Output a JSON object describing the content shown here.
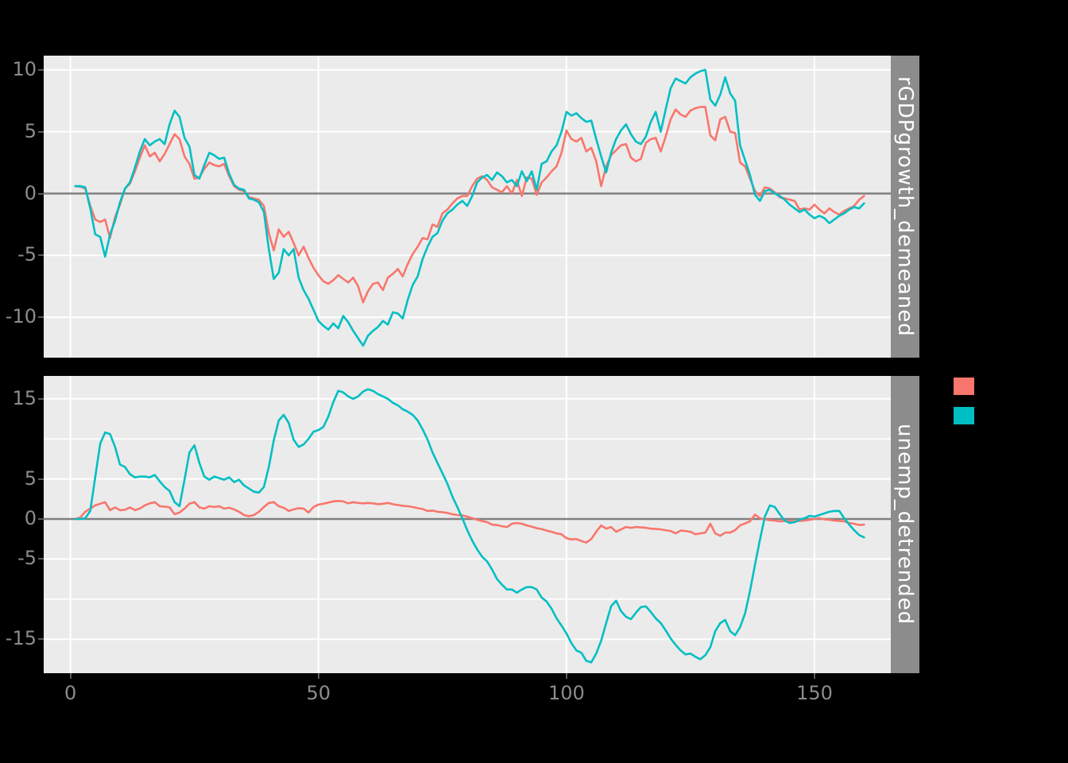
{
  "figure": {
    "background_color": "#000000",
    "panel_background": "#EBEBEB",
    "gridline_color": "#FFFFFF",
    "zero_line_color": "#808080",
    "axis_text_color": "#8C8C8C",
    "strip_background": "#8C8C8C",
    "strip_text_color": "#FFFFFF"
  },
  "x_axis": {
    "ticks": [
      0,
      50,
      100,
      150
    ],
    "tick_labels": [
      "0",
      "50",
      "100",
      "150"
    ]
  },
  "legend": {
    "position": "right",
    "items": [
      {
        "swatch_color": "#F8766D",
        "label": ""
      },
      {
        "swatch_color": "#00BFC4",
        "label": ""
      }
    ]
  },
  "chart_data": [
    {
      "type": "line",
      "strip_label": "rGDPgrowth_demeaned",
      "x_start": 1,
      "x_step": 1,
      "xlim": [
        -5,
        165
      ],
      "ylim": [
        -13,
        11
      ],
      "zero_line": 0,
      "grid": "on",
      "y_gridlines": [
        {
          "value": 10,
          "label": "10"
        },
        {
          "value": 5,
          "label": "5"
        },
        {
          "value": 0,
          "label": "0"
        },
        {
          "value": -5,
          "label": "-5"
        },
        {
          "value": -10,
          "label": "-10"
        }
      ],
      "series": [
        {
          "name": "series-salmon",
          "color": "#F8766D",
          "values": [
            0.6,
            0.55,
            0.4,
            -1.0,
            -2.1,
            -2.3,
            -2.1,
            -3.6,
            -1.9,
            -0.9,
            0.4,
            0.8,
            1.8,
            2.9,
            3.9,
            3.0,
            3.3,
            2.6,
            3.2,
            4.0,
            4.8,
            4.4,
            3.0,
            2.4,
            1.2,
            1.3,
            2.0,
            2.5,
            2.3,
            2.2,
            2.4,
            1.4,
            0.6,
            0.3,
            0.2,
            -0.3,
            -0.4,
            -0.5,
            -1.0,
            -3.2,
            -4.6,
            -2.9,
            -3.5,
            -3.1,
            -4.0,
            -5.0,
            -4.3,
            -5.2,
            -6.0,
            -6.6,
            -7.1,
            -7.3,
            -7.0,
            -6.6,
            -6.9,
            -7.2,
            -6.8,
            -7.5,
            -8.8,
            -7.9,
            -7.3,
            -7.2,
            -7.8,
            -6.8,
            -6.5,
            -6.1,
            -6.7,
            -5.7,
            -4.9,
            -4.3,
            -3.6,
            -3.7,
            -2.5,
            -2.7,
            -1.6,
            -1.3,
            -0.8,
            -0.4,
            -0.2,
            -0.2,
            0.6,
            1.2,
            1.4,
            1.1,
            0.5,
            0.3,
            0.1,
            0.6,
            0.0,
            1.1,
            -0.2,
            1.3,
            1.2,
            -0.1,
            0.9,
            1.3,
            1.8,
            2.2,
            3.3,
            5.1,
            4.4,
            4.2,
            4.5,
            3.4,
            3.7,
            2.6,
            0.6,
            2.2,
            3.1,
            3.5,
            3.9,
            4.0,
            2.9,
            2.6,
            2.8,
            4.1,
            4.4,
            4.5,
            3.4,
            4.6,
            6.0,
            6.8,
            6.4,
            6.2,
            6.7,
            6.9,
            7.0,
            7.0,
            4.7,
            4.3,
            6.0,
            6.2,
            5.0,
            4.9,
            2.5,
            2.2,
            1.2,
            0.2,
            -0.2,
            0.5,
            0.4,
            0.1,
            -0.3,
            -0.4,
            -0.5,
            -0.6,
            -1.3,
            -1.2,
            -1.3,
            -0.9,
            -1.3,
            -1.6,
            -1.2,
            -1.5,
            -1.7,
            -1.4,
            -1.2,
            -1.0,
            -0.5,
            -0.2
          ]
        },
        {
          "name": "series-teal",
          "color": "#00BFC4",
          "values": [
            0.6,
            0.6,
            0.5,
            -1.2,
            -3.3,
            -3.5,
            -5.1,
            -3.3,
            -2.2,
            -0.7,
            0.4,
            0.9,
            2.1,
            3.4,
            4.4,
            3.9,
            4.2,
            4.4,
            4.0,
            5.6,
            6.7,
            6.2,
            4.5,
            3.8,
            1.5,
            1.2,
            2.3,
            3.3,
            3.1,
            2.8,
            2.9,
            1.6,
            0.7,
            0.4,
            0.3,
            -0.4,
            -0.5,
            -0.7,
            -1.5,
            -4.5,
            -6.9,
            -6.4,
            -4.5,
            -5.0,
            -4.5,
            -6.8,
            -7.8,
            -8.5,
            -9.4,
            -10.3,
            -10.7,
            -11.0,
            -10.5,
            -10.9,
            -9.9,
            -10.4,
            -11.1,
            -11.7,
            -12.3,
            -11.5,
            -11.1,
            -10.8,
            -10.3,
            -10.6,
            -9.6,
            -9.7,
            -10.1,
            -8.6,
            -7.4,
            -6.7,
            -5.3,
            -4.3,
            -3.5,
            -3.2,
            -2.2,
            -1.6,
            -1.3,
            -0.9,
            -0.6,
            -1.0,
            -0.2,
            0.9,
            1.3,
            1.5,
            1.1,
            1.7,
            1.4,
            0.9,
            1.1,
            0.6,
            1.8,
            1.0,
            1.8,
            0.3,
            2.4,
            2.6,
            3.4,
            3.9,
            5.0,
            6.6,
            6.3,
            6.5,
            6.1,
            5.8,
            5.9,
            4.4,
            3.0,
            1.7,
            3.3,
            4.4,
            5.1,
            5.6,
            4.8,
            4.2,
            4.0,
            4.6,
            5.8,
            6.6,
            5.0,
            6.8,
            8.5,
            9.3,
            9.1,
            8.9,
            9.4,
            9.7,
            9.9,
            10.0,
            7.6,
            7.1,
            8.0,
            9.4,
            8.1,
            7.5,
            3.9,
            2.7,
            1.5,
            -0.1,
            -0.6,
            0.2,
            0.3,
            0.0,
            -0.2,
            -0.5,
            -0.9,
            -1.2,
            -1.5,
            -1.3,
            -1.7,
            -2.0,
            -1.8,
            -2.0,
            -2.4,
            -2.1,
            -1.8,
            -1.6,
            -1.3,
            -1.1,
            -1.2,
            -0.8
          ]
        }
      ]
    },
    {
      "type": "line",
      "strip_label": "unemp_detrended",
      "x_start": 1,
      "x_step": 1,
      "xlim": [
        -5,
        165
      ],
      "ylim": [
        -19,
        18
      ],
      "zero_line": 0,
      "grid": "on",
      "y_gridlines": [
        {
          "value": 15,
          "label": "15"
        },
        {
          "value": 10,
          "label": ""
        },
        {
          "value": 5,
          "label": "5"
        },
        {
          "value": 0,
          "label": "0"
        },
        {
          "value": -5,
          "label": "-5"
        },
        {
          "value": -10,
          "label": ""
        },
        {
          "value": -15,
          "label": "-15"
        }
      ],
      "series": [
        {
          "name": "series-salmon",
          "color": "#F8766D",
          "values": [
            0.0,
            0.2,
            0.9,
            1.3,
            1.7,
            1.9,
            2.1,
            1.1,
            1.45,
            1.1,
            1.15,
            1.45,
            1.1,
            1.3,
            1.7,
            1.95,
            2.1,
            1.6,
            1.55,
            1.45,
            0.6,
            0.8,
            1.3,
            1.9,
            2.1,
            1.45,
            1.3,
            1.6,
            1.5,
            1.6,
            1.3,
            1.4,
            1.2,
            0.9,
            0.5,
            0.35,
            0.5,
            0.9,
            1.5,
            2.0,
            2.1,
            1.6,
            1.4,
            1.0,
            1.2,
            1.35,
            1.3,
            0.8,
            1.5,
            1.8,
            1.9,
            2.05,
            2.2,
            2.25,
            2.2,
            1.95,
            2.1,
            2.0,
            1.95,
            2.0,
            1.95,
            1.85,
            1.9,
            2.0,
            1.85,
            1.75,
            1.65,
            1.6,
            1.5,
            1.35,
            1.25,
            1.0,
            1.05,
            0.9,
            0.85,
            0.75,
            0.6,
            0.5,
            0.45,
            0.3,
            0.1,
            -0.1,
            -0.25,
            -0.4,
            -0.7,
            -0.75,
            -0.9,
            -1.0,
            -0.6,
            -0.5,
            -0.6,
            -0.8,
            -0.95,
            -1.15,
            -1.25,
            -1.45,
            -1.6,
            -1.8,
            -1.9,
            -2.4,
            -2.55,
            -2.5,
            -2.75,
            -2.95,
            -2.5,
            -1.6,
            -0.8,
            -1.2,
            -1.0,
            -1.6,
            -1.3,
            -1.0,
            -1.1,
            -1.0,
            -1.05,
            -1.1,
            -1.2,
            -1.25,
            -1.3,
            -1.4,
            -1.5,
            -1.8,
            -1.45,
            -1.5,
            -1.6,
            -1.9,
            -1.8,
            -1.7,
            -0.6,
            -1.8,
            -2.1,
            -1.7,
            -1.7,
            -1.4,
            -0.8,
            -0.55,
            -0.3,
            0.55,
            0.1,
            -0.05,
            -0.15,
            -0.2,
            -0.3,
            -0.25,
            -0.25,
            -0.3,
            -0.25,
            -0.2,
            -0.1,
            0.0,
            0.1,
            -0.05,
            -0.1,
            -0.2,
            -0.25,
            -0.3,
            -0.5,
            -0.6,
            -0.75,
            -0.7
          ]
        },
        {
          "name": "series-teal",
          "color": "#00BFC4",
          "values": [
            0.0,
            0.0,
            0.1,
            1.0,
            5.2,
            9.4,
            10.8,
            10.6,
            9.0,
            6.8,
            6.5,
            5.6,
            5.2,
            5.3,
            5.3,
            5.2,
            5.5,
            4.7,
            4.0,
            3.5,
            2.1,
            1.6,
            4.9,
            8.3,
            9.2,
            7.0,
            5.3,
            4.9,
            5.3,
            5.1,
            4.9,
            5.2,
            4.6,
            4.9,
            4.2,
            3.8,
            3.4,
            3.3,
            4.0,
            6.5,
            9.8,
            12.3,
            13.0,
            12.0,
            9.9,
            9.0,
            9.3,
            10.0,
            10.9,
            11.1,
            11.5,
            12.8,
            14.6,
            16.0,
            15.8,
            15.3,
            15.0,
            15.3,
            15.9,
            16.2,
            16.0,
            15.6,
            15.3,
            15.0,
            14.5,
            14.2,
            13.7,
            13.4,
            13.0,
            12.3,
            11.2,
            9.9,
            8.3,
            7.0,
            5.7,
            4.4,
            2.8,
            1.5,
            0.1,
            -1.4,
            -2.7,
            -3.8,
            -4.7,
            -5.3,
            -6.3,
            -7.5,
            -8.2,
            -8.8,
            -8.8,
            -9.2,
            -8.8,
            -8.5,
            -8.5,
            -8.8,
            -9.8,
            -10.3,
            -11.2,
            -12.4,
            -13.3,
            -14.3,
            -15.5,
            -16.4,
            -16.7,
            -17.7,
            -17.9,
            -16.8,
            -15.2,
            -13.0,
            -10.9,
            -10.2,
            -11.5,
            -12.2,
            -12.5,
            -11.7,
            -11.0,
            -10.9,
            -11.6,
            -12.4,
            -13.0,
            -13.9,
            -14.9,
            -15.7,
            -16.4,
            -16.9,
            -16.8,
            -17.2,
            -17.5,
            -17.0,
            -16.0,
            -14.0,
            -13.0,
            -12.6,
            -14.0,
            -14.5,
            -13.5,
            -11.8,
            -9.0,
            -5.7,
            -2.6,
            0.3,
            1.7,
            1.5,
            0.6,
            -0.2,
            -0.5,
            -0.4,
            -0.1,
            0.1,
            0.4,
            0.3,
            0.5,
            0.7,
            0.9,
            1.0,
            1.0,
            0.1,
            -0.7,
            -1.4,
            -2.0,
            -2.3
          ]
        }
      ]
    }
  ]
}
